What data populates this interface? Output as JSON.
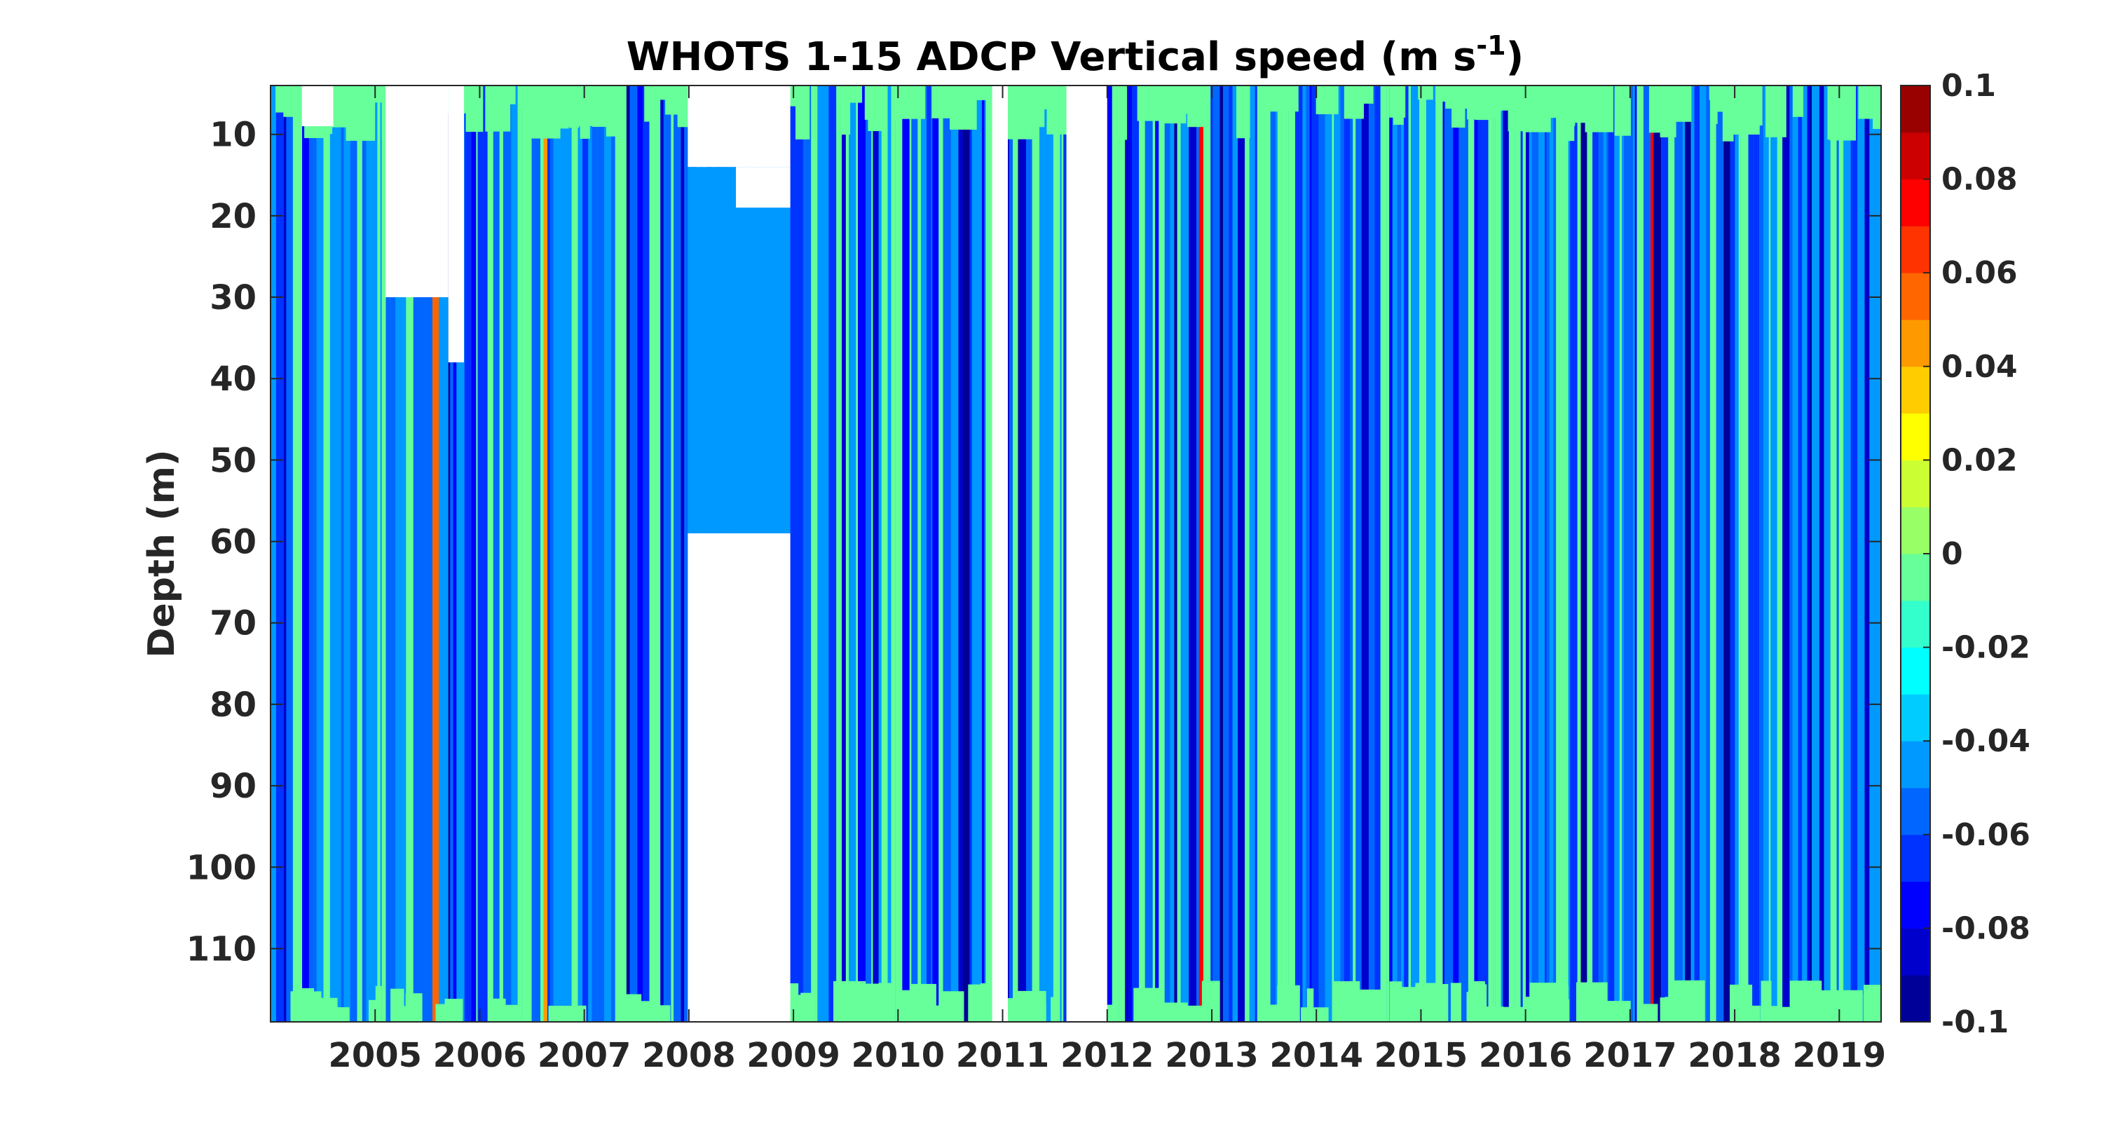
{
  "chart_data": {
    "type": "heatmap",
    "title_main": "WHOTS 1-15 ADCP Vertical speed (m s",
    "title_sup": "-1",
    "title_close": ")",
    "ylabel": "Depth (m)",
    "xlabel": "",
    "x_tick_labels": [
      "2005",
      "2006",
      "2007",
      "2008",
      "2009",
      "2010",
      "2011",
      "2012",
      "2013",
      "2014",
      "2015",
      "2016",
      "2017",
      "2018",
      "2019"
    ],
    "xlim": [
      2004.5,
      2019.9
    ],
    "ylim": [
      4,
      119
    ],
    "y_reversed": true,
    "y_ticks": [
      10,
      20,
      30,
      40,
      50,
      60,
      70,
      80,
      90,
      100,
      110
    ],
    "y_tick_labels": [
      "10",
      "20",
      "30",
      "40",
      "50",
      "60",
      "70",
      "80",
      "90",
      "100",
      "110"
    ],
    "colorbar": {
      "min": -0.1,
      "max": 0.1,
      "levels": 20,
      "colormap": "jet",
      "tick_values": [
        0.1,
        0.08,
        0.06,
        0.04,
        0.02,
        0,
        -0.02,
        -0.04,
        -0.06,
        -0.08,
        -0.1
      ],
      "tick_labels": [
        "0.1",
        "0.08",
        "0.06",
        "0.04",
        "0.02",
        "0",
        "-0.02",
        "-0.04",
        "-0.06",
        "-0.08",
        "-0.1"
      ]
    },
    "data_gaps": [
      {
        "x_start": 2008.49,
        "x_end": 2009.47,
        "depth_from": 4,
        "depth_to": 14,
        "note_visible": false
      },
      {
        "x_start": 2008.49,
        "x_end": 2009.47,
        "depth_from": 59,
        "depth_to": 119
      },
      {
        "x_start": 2011.4,
        "x_end": 2011.55,
        "depth_from": 4,
        "depth_to": 119
      },
      {
        "x_start": 2012.11,
        "x_end": 2012.5,
        "depth_from": 4,
        "depth_to": 119
      }
    ],
    "dominant_value_range": [
      -0.06,
      0.0
    ]
  }
}
